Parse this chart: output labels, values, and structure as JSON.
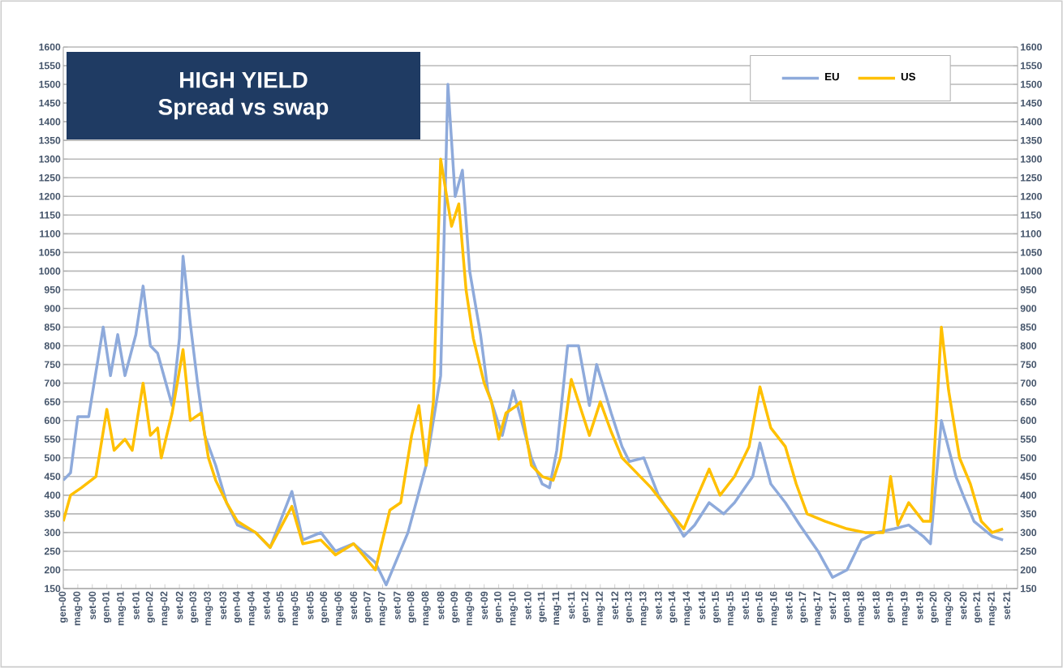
{
  "chart_data": {
    "type": "line",
    "title": "HIGH YIELD",
    "subtitle": "Spread vs swap",
    "series": [
      {
        "name": "EU",
        "color": "#8eaadb",
        "x": [
          "2000-01",
          "2000-03",
          "2000-05",
          "2000-08",
          "2000-12",
          "2001-02",
          "2001-04",
          "2001-06",
          "2001-09",
          "2001-11",
          "2002-01",
          "2002-03",
          "2002-07",
          "2002-09",
          "2002-10",
          "2002-12",
          "2003-02",
          "2003-04",
          "2003-07",
          "2003-10",
          "2004-01",
          "2004-06",
          "2004-10",
          "2005-04",
          "2005-07",
          "2005-12",
          "2006-04",
          "2006-09",
          "2007-03",
          "2007-06",
          "2007-12",
          "2008-05",
          "2008-09",
          "2008-11",
          "2009-01",
          "2009-03",
          "2009-05",
          "2009-08",
          "2009-10",
          "2009-12",
          "2010-02",
          "2010-05",
          "2010-07",
          "2010-10",
          "2011-01",
          "2011-03",
          "2011-05",
          "2011-08",
          "2011-11",
          "2012-02",
          "2012-04",
          "2012-08",
          "2012-11",
          "2013-01",
          "2013-05",
          "2013-09",
          "2014-01",
          "2014-04",
          "2014-07",
          "2014-11",
          "2015-03",
          "2015-06",
          "2015-11",
          "2016-01",
          "2016-04",
          "2016-08",
          "2016-12",
          "2017-05",
          "2017-09",
          "2018-01",
          "2018-05",
          "2018-09",
          "2019-02",
          "2019-06",
          "2019-10",
          "2019-12",
          "2020-03",
          "2020-07",
          "2020-09",
          "2020-12",
          "2021-05",
          "2021-08"
        ],
        "values": [
          440,
          460,
          610,
          610,
          850,
          720,
          830,
          720,
          830,
          960,
          800,
          780,
          640,
          820,
          1040,
          860,
          700,
          560,
          480,
          380,
          320,
          300,
          260,
          410,
          280,
          300,
          250,
          270,
          220,
          160,
          300,
          480,
          720,
          1500,
          1200,
          1270,
          1000,
          830,
          680,
          620,
          560,
          680,
          610,
          500,
          430,
          420,
          520,
          800,
          800,
          640,
          750,
          620,
          530,
          490,
          500,
          400,
          340,
          290,
          320,
          380,
          350,
          380,
          450,
          540,
          430,
          380,
          320,
          250,
          180,
          200,
          280,
          300,
          310,
          320,
          290,
          270,
          600,
          450,
          400,
          330,
          290,
          280
        ]
      },
      {
        "name": "US",
        "color": "#ffc000",
        "x": [
          "2000-01",
          "2000-03",
          "2000-06",
          "2000-10",
          "2001-01",
          "2001-03",
          "2001-06",
          "2001-08",
          "2001-11",
          "2002-01",
          "2002-03",
          "2002-04",
          "2002-07",
          "2002-10",
          "2002-12",
          "2003-03",
          "2003-05",
          "2003-07",
          "2003-10",
          "2004-01",
          "2004-06",
          "2004-10",
          "2005-04",
          "2005-07",
          "2005-12",
          "2006-04",
          "2006-09",
          "2007-03",
          "2007-07",
          "2007-10",
          "2008-01",
          "2008-03",
          "2008-05",
          "2008-07",
          "2008-09",
          "2008-12",
          "2009-02",
          "2009-04",
          "2009-06",
          "2009-09",
          "2009-11",
          "2010-01",
          "2010-03",
          "2010-06",
          "2010-07",
          "2010-10",
          "2011-01",
          "2011-04",
          "2011-06",
          "2011-09",
          "2011-12",
          "2012-02",
          "2012-05",
          "2012-08",
          "2012-11",
          "2013-02",
          "2013-07",
          "2013-11",
          "2014-04",
          "2014-07",
          "2014-11",
          "2015-02",
          "2015-06",
          "2015-10",
          "2016-01",
          "2016-04",
          "2016-08",
          "2016-11",
          "2017-02",
          "2017-07",
          "2018-01",
          "2018-06",
          "2018-11",
          "2019-01",
          "2019-03",
          "2019-06",
          "2019-10",
          "2019-12",
          "2020-03",
          "2020-05",
          "2020-08",
          "2020-11",
          "2021-02",
          "2021-05",
          "2021-08"
        ],
        "values": [
          330,
          400,
          420,
          450,
          630,
          520,
          550,
          520,
          700,
          560,
          580,
          500,
          620,
          790,
          600,
          620,
          500,
          440,
          380,
          330,
          300,
          260,
          370,
          270,
          280,
          240,
          270,
          200,
          360,
          380,
          560,
          640,
          480,
          650,
          1300,
          1120,
          1180,
          950,
          820,
          700,
          650,
          550,
          620,
          640,
          650,
          480,
          450,
          440,
          500,
          710,
          620,
          560,
          650,
          570,
          500,
          470,
          420,
          370,
          310,
          380,
          470,
          400,
          450,
          530,
          690,
          580,
          530,
          430,
          350,
          330,
          310,
          300,
          300,
          450,
          320,
          380,
          330,
          330,
          850,
          680,
          500,
          430,
          330,
          300,
          310
        ]
      }
    ],
    "xlim": [
      "2000-01",
      "2021-12"
    ],
    "xticks": [
      {
        "value": "2000-01",
        "label": "gen-00"
      },
      {
        "value": "2000-05",
        "label": "mag-00"
      },
      {
        "value": "2000-09",
        "label": "set-00"
      },
      {
        "value": "2001-01",
        "label": "gen-01"
      },
      {
        "value": "2001-05",
        "label": "mag-01"
      },
      {
        "value": "2001-09",
        "label": "set-01"
      },
      {
        "value": "2002-01",
        "label": "gen-02"
      },
      {
        "value": "2002-05",
        "label": "mag-02"
      },
      {
        "value": "2002-09",
        "label": "set-02"
      },
      {
        "value": "2003-01",
        "label": "gen-03"
      },
      {
        "value": "2003-05",
        "label": "mag-03"
      },
      {
        "value": "2003-09",
        "label": "set-03"
      },
      {
        "value": "2004-01",
        "label": "gen-04"
      },
      {
        "value": "2004-05",
        "label": "mag-04"
      },
      {
        "value": "2004-09",
        "label": "set-04"
      },
      {
        "value": "2005-01",
        "label": "gen-05"
      },
      {
        "value": "2005-05",
        "label": "mag-05"
      },
      {
        "value": "2005-09",
        "label": "set-05"
      },
      {
        "value": "2006-01",
        "label": "gen-06"
      },
      {
        "value": "2006-05",
        "label": "mag-06"
      },
      {
        "value": "2006-09",
        "label": "set-06"
      },
      {
        "value": "2007-01",
        "label": "gen-07"
      },
      {
        "value": "2007-05",
        "label": "mag-07"
      },
      {
        "value": "2007-09",
        "label": "set-07"
      },
      {
        "value": "2008-01",
        "label": "gen-08"
      },
      {
        "value": "2008-05",
        "label": "mag-08"
      },
      {
        "value": "2008-09",
        "label": "set-08"
      },
      {
        "value": "2009-01",
        "label": "gen-09"
      },
      {
        "value": "2009-05",
        "label": "mag-09"
      },
      {
        "value": "2009-09",
        "label": "set-09"
      },
      {
        "value": "2010-01",
        "label": "gen-10"
      },
      {
        "value": "2010-05",
        "label": "mag-10"
      },
      {
        "value": "2010-09",
        "label": "set-10"
      },
      {
        "value": "2011-01",
        "label": "gen-11"
      },
      {
        "value": "2011-05",
        "label": "mag-11"
      },
      {
        "value": "2011-09",
        "label": "set-11"
      },
      {
        "value": "2012-01",
        "label": "gen-12"
      },
      {
        "value": "2012-05",
        "label": "mag-12"
      },
      {
        "value": "2012-09",
        "label": "set-12"
      },
      {
        "value": "2013-01",
        "label": "gen-13"
      },
      {
        "value": "2013-05",
        "label": "mag-13"
      },
      {
        "value": "2013-09",
        "label": "set-13"
      },
      {
        "value": "2014-01",
        "label": "gen-14"
      },
      {
        "value": "2014-05",
        "label": "mag-14"
      },
      {
        "value": "2014-09",
        "label": "set-14"
      },
      {
        "value": "2015-01",
        "label": "gen-15"
      },
      {
        "value": "2015-05",
        "label": "mag-15"
      },
      {
        "value": "2015-09",
        "label": "set-15"
      },
      {
        "value": "2016-01",
        "label": "gen-16"
      },
      {
        "value": "2016-05",
        "label": "mag-16"
      },
      {
        "value": "2016-09",
        "label": "set-16"
      },
      {
        "value": "2017-01",
        "label": "gen-17"
      },
      {
        "value": "2017-05",
        "label": "mag-17"
      },
      {
        "value": "2017-09",
        "label": "set-17"
      },
      {
        "value": "2018-01",
        "label": "gen-18"
      },
      {
        "value": "2018-05",
        "label": "mag-18"
      },
      {
        "value": "2018-09",
        "label": "set-18"
      },
      {
        "value": "2019-01",
        "label": "gen-19"
      },
      {
        "value": "2019-05",
        "label": "mag-19"
      },
      {
        "value": "2019-09",
        "label": "set-19"
      },
      {
        "value": "2020-01",
        "label": "gen-20"
      },
      {
        "value": "2020-05",
        "label": "mag-20"
      },
      {
        "value": "2020-09",
        "label": "set-20"
      },
      {
        "value": "2021-01",
        "label": "gen-21"
      },
      {
        "value": "2021-05",
        "label": "mag-21"
      },
      {
        "value": "2021-09",
        "label": "set-21"
      }
    ],
    "ylim": [
      150,
      1600
    ],
    "yticks": [
      150,
      200,
      250,
      300,
      350,
      400,
      450,
      500,
      550,
      600,
      650,
      700,
      750,
      800,
      850,
      900,
      950,
      1000,
      1050,
      1100,
      1150,
      1200,
      1250,
      1300,
      1350,
      1400,
      1450,
      1500,
      1550,
      1600
    ],
    "y2lim": [
      150,
      1600
    ],
    "y2ticks": [
      150,
      200,
      250,
      300,
      350,
      400,
      450,
      500,
      550,
      600,
      650,
      700,
      750,
      800,
      850,
      900,
      950,
      1000,
      1050,
      1100,
      1150,
      1200,
      1250,
      1300,
      1350,
      1400,
      1450,
      1500,
      1550,
      1600
    ],
    "grid": "y",
    "legend": "top right"
  }
}
